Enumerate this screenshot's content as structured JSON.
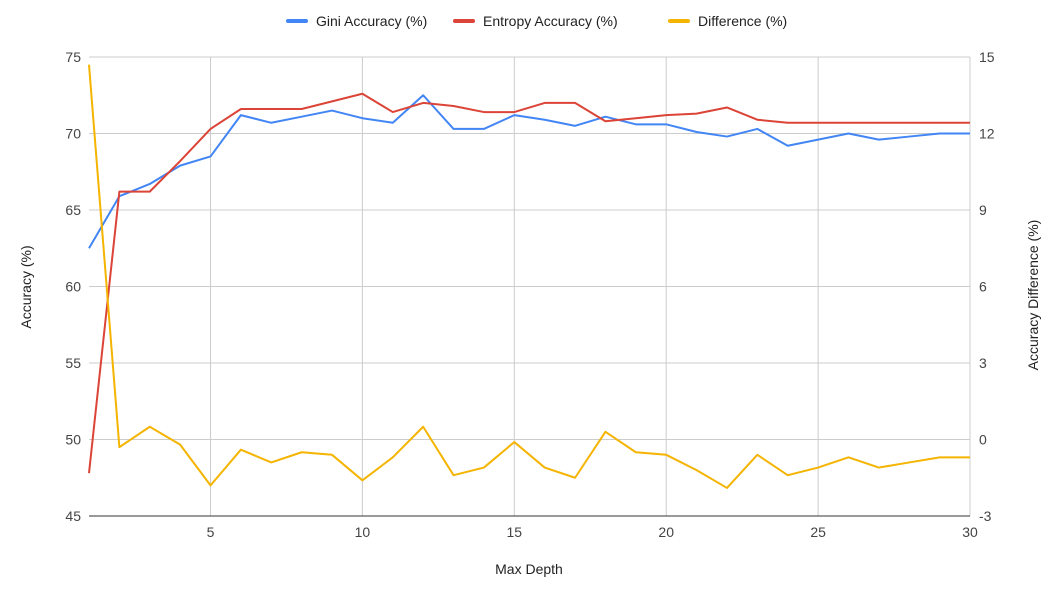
{
  "colors": {
    "gini": "#4285F4",
    "entropy": "#DB4437",
    "difference": "#F4B400",
    "grid": "#cccccc",
    "axis": "#333333"
  },
  "chart_data": {
    "type": "line",
    "title": "",
    "xlabel": "Max Depth",
    "ylabel": "Accuracy (%)",
    "y2label": "Accuracy Difference (%)",
    "xlim": [
      1,
      30
    ],
    "ylim": [
      45,
      75
    ],
    "y2lim": [
      -3,
      15
    ],
    "x_ticks": [
      5,
      10,
      15,
      20,
      25,
      30
    ],
    "y_ticks": [
      45,
      50,
      55,
      60,
      65,
      70,
      75
    ],
    "y2_ticks": [
      -3,
      0,
      3,
      6,
      9,
      12,
      15
    ],
    "grid": true,
    "legend_position": "top",
    "x": [
      1,
      2,
      3,
      4,
      5,
      6,
      7,
      8,
      9,
      10,
      11,
      12,
      13,
      14,
      15,
      16,
      17,
      18,
      19,
      20,
      21,
      22,
      23,
      24,
      25,
      26,
      27,
      28,
      29,
      30
    ],
    "series": [
      {
        "name": "Gini Accuracy (%)",
        "axis": "left",
        "values": [
          62.5,
          65.9,
          66.7,
          67.9,
          68.5,
          71.2,
          70.7,
          71.1,
          71.5,
          71.0,
          70.7,
          72.5,
          70.3,
          70.3,
          71.2,
          70.9,
          70.5,
          71.1,
          70.6,
          70.6,
          70.1,
          69.8,
          70.3,
          69.2,
          69.6,
          70.0,
          69.6,
          69.8,
          70.0,
          70.0
        ]
      },
      {
        "name": "Entropy Accuracy (%)",
        "axis": "left",
        "values": [
          47.8,
          66.2,
          66.2,
          68.2,
          70.3,
          71.6,
          71.6,
          71.6,
          72.1,
          72.6,
          71.4,
          72.0,
          71.8,
          71.4,
          71.4,
          72.0,
          72.0,
          70.8,
          71.0,
          71.2,
          71.3,
          71.7,
          70.9,
          70.7,
          70.7,
          70.7,
          70.7,
          70.7,
          70.7,
          70.7
        ]
      },
      {
        "name": "Difference (%)",
        "axis": "right",
        "values": [
          14.7,
          -0.3,
          0.5,
          -0.2,
          -1.8,
          -0.4,
          -0.9,
          -0.5,
          -0.6,
          -1.6,
          -0.7,
          0.5,
          -1.4,
          -1.1,
          -0.1,
          -1.1,
          -1.5,
          0.3,
          -0.5,
          -0.6,
          -1.2,
          -1.9,
          -0.6,
          -1.4,
          -1.1,
          -0.7,
          -1.1,
          -0.9,
          -0.7,
          -0.7
        ]
      }
    ]
  }
}
